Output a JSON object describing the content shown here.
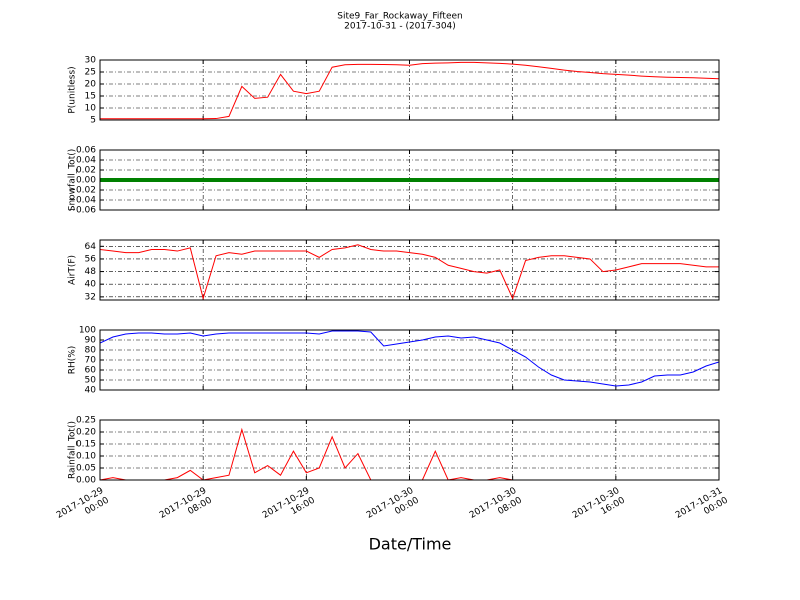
{
  "title": "Site9_Far_Rockaway_Fifteen",
  "subtitle": "2017-10-31 - (2017-304)",
  "xlabel": "Date/Time",
  "chart_data": [
    {
      "type": "line",
      "ylabel": "P(unitless)",
      "ylim": [
        5,
        30
      ],
      "yticks": [
        5,
        10,
        15,
        20,
        25,
        30
      ],
      "grid": true,
      "xlim": [
        "2017-10-29 00:00",
        "2017-10-31 00:00"
      ],
      "x": [
        "2017-10-29 00:00",
        "2017-10-29 01:00",
        "2017-10-29 02:00",
        "2017-10-29 03:00",
        "2017-10-29 04:00",
        "2017-10-29 05:00",
        "2017-10-29 06:00",
        "2017-10-29 07:00",
        "2017-10-29 08:00",
        "2017-10-29 09:00",
        "2017-10-29 10:00",
        "2017-10-29 11:00",
        "2017-10-29 12:00",
        "2017-10-29 13:00",
        "2017-10-29 14:00",
        "2017-10-29 15:00",
        "2017-10-29 16:00",
        "2017-10-29 17:00",
        "2017-10-29 18:00",
        "2017-10-29 19:00",
        "2017-10-29 20:00",
        "2017-10-29 21:00",
        "2017-10-29 22:00",
        "2017-10-29 23:00",
        "2017-10-30 00:00",
        "2017-10-30 01:00",
        "2017-10-30 02:00",
        "2017-10-30 03:00",
        "2017-10-30 04:00",
        "2017-10-30 05:00",
        "2017-10-30 06:00",
        "2017-10-30 07:00",
        "2017-10-30 08:00",
        "2017-10-30 09:00",
        "2017-10-30 10:00",
        "2017-10-30 11:00",
        "2017-10-30 12:00",
        "2017-10-30 13:00",
        "2017-10-30 14:00",
        "2017-10-30 15:00",
        "2017-10-30 16:00",
        "2017-10-30 17:00",
        "2017-10-30 18:00",
        "2017-10-30 19:00",
        "2017-10-30 20:00",
        "2017-10-30 21:00",
        "2017-10-30 22:00",
        "2017-10-30 23:00",
        "2017-10-31 00:00"
      ],
      "series": [
        {
          "color": "#ff0000",
          "values": [
            5.5,
            5.5,
            5.5,
            5.5,
            5.5,
            5.5,
            5.5,
            5.5,
            5.5,
            5.6,
            6.5,
            19,
            14,
            14.5,
            24,
            17,
            16,
            17,
            27,
            28,
            28.2,
            28.2,
            28.1,
            28,
            27.8,
            28.5,
            28.7,
            28.8,
            29,
            29,
            28.8,
            28.6,
            28.3,
            27.8,
            27.2,
            26.5,
            25.8,
            25.2,
            24.8,
            24.3,
            24,
            23.7,
            23.3,
            23,
            22.8,
            22.7,
            22.6,
            22.4,
            22.2
          ]
        }
      ]
    },
    {
      "type": "line",
      "ylabel": "Snowfall_Tot()",
      "ylim": [
        -0.06,
        0.06
      ],
      "yticks": [
        {
          "value": -0.06,
          "label": "−0.06"
        },
        {
          "value": -0.04,
          "label": "−0.04"
        },
        {
          "value": -0.02,
          "label": "−0.02"
        },
        {
          "value": 0,
          "label": "0.00"
        },
        0.02,
        0.04,
        0.06
      ],
      "grid": true,
      "xlim": [
        "2017-10-29 00:00",
        "2017-10-31 00:00"
      ],
      "x": [
        "2017-10-29 00:00",
        "2017-10-29 01:00",
        "2017-10-29 02:00",
        "2017-10-29 03:00",
        "2017-10-29 04:00",
        "2017-10-29 05:00",
        "2017-10-29 06:00",
        "2017-10-29 07:00",
        "2017-10-29 08:00",
        "2017-10-29 09:00",
        "2017-10-29 10:00",
        "2017-10-29 11:00",
        "2017-10-29 12:00",
        "2017-10-29 13:00",
        "2017-10-29 14:00",
        "2017-10-29 15:00",
        "2017-10-29 16:00",
        "2017-10-29 17:00",
        "2017-10-29 18:00",
        "2017-10-29 19:00",
        "2017-10-29 20:00",
        "2017-10-29 21:00",
        "2017-10-29 22:00",
        "2017-10-29 23:00",
        "2017-10-30 00:00",
        "2017-10-30 01:00",
        "2017-10-30 02:00",
        "2017-10-30 03:00",
        "2017-10-30 04:00",
        "2017-10-30 05:00",
        "2017-10-30 06:00",
        "2017-10-30 07:00",
        "2017-10-30 08:00",
        "2017-10-30 09:00",
        "2017-10-30 10:00",
        "2017-10-30 11:00",
        "2017-10-30 12:00",
        "2017-10-30 13:00",
        "2017-10-30 14:00",
        "2017-10-30 15:00",
        "2017-10-30 16:00",
        "2017-10-30 17:00",
        "2017-10-30 18:00",
        "2017-10-30 19:00",
        "2017-10-30 20:00",
        "2017-10-30 21:00",
        "2017-10-30 22:00",
        "2017-10-30 23:00",
        "2017-10-31 00:00"
      ],
      "series": [
        {
          "color": "#008000",
          "values": [
            0,
            0,
            0,
            0,
            0,
            0,
            0,
            0,
            0,
            0,
            0,
            0,
            0,
            0,
            0,
            0,
            0,
            0,
            0,
            0,
            0,
            0,
            0,
            0,
            0,
            0,
            0,
            0,
            0,
            0,
            0,
            0,
            0,
            0,
            0,
            0,
            0,
            0,
            0,
            0,
            0,
            0,
            0,
            0,
            0,
            0,
            0,
            0,
            0
          ]
        }
      ]
    },
    {
      "type": "line",
      "ylabel": "AirT(F)",
      "ylim": [
        30,
        68
      ],
      "yticks": [
        32,
        40,
        48,
        56,
        64
      ],
      "grid": true,
      "xlim": [
        "2017-10-29 00:00",
        "2017-10-31 00:00"
      ],
      "x": [
        "2017-10-29 00:00",
        "2017-10-29 01:00",
        "2017-10-29 02:00",
        "2017-10-29 03:00",
        "2017-10-29 04:00",
        "2017-10-29 05:00",
        "2017-10-29 06:00",
        "2017-10-29 07:00",
        "2017-10-29 08:00",
        "2017-10-29 09:00",
        "2017-10-29 10:00",
        "2017-10-29 11:00",
        "2017-10-29 12:00",
        "2017-10-29 13:00",
        "2017-10-29 14:00",
        "2017-10-29 15:00",
        "2017-10-29 16:00",
        "2017-10-29 17:00",
        "2017-10-29 18:00",
        "2017-10-29 19:00",
        "2017-10-29 20:00",
        "2017-10-29 21:00",
        "2017-10-29 22:00",
        "2017-10-29 23:00",
        "2017-10-30 00:00",
        "2017-10-30 01:00",
        "2017-10-30 02:00",
        "2017-10-30 03:00",
        "2017-10-30 04:00",
        "2017-10-30 05:00",
        "2017-10-30 06:00",
        "2017-10-30 07:00",
        "2017-10-30 08:00",
        "2017-10-30 09:00",
        "2017-10-30 10:00",
        "2017-10-30 11:00",
        "2017-10-30 12:00",
        "2017-10-30 13:00",
        "2017-10-30 14:00",
        "2017-10-30 15:00",
        "2017-10-30 16:00",
        "2017-10-30 17:00",
        "2017-10-30 18:00",
        "2017-10-30 19:00",
        "2017-10-30 20:00",
        "2017-10-30 21:00",
        "2017-10-30 22:00",
        "2017-10-30 23:00",
        "2017-10-31 00:00"
      ],
      "series": [
        {
          "color": "#ff0000",
          "values": [
            62,
            61,
            60,
            60,
            62,
            62,
            61,
            63,
            31,
            58,
            60,
            59,
            61,
            61,
            61,
            61,
            61,
            57,
            62,
            63,
            65,
            62,
            61,
            61,
            60,
            59,
            57,
            52,
            50,
            48,
            47,
            49,
            31,
            55,
            57,
            58,
            58,
            57,
            56,
            48,
            49,
            51,
            53,
            53,
            53,
            53,
            52,
            51,
            51
          ]
        }
      ]
    },
    {
      "type": "line",
      "ylabel": "RH(%)",
      "ylim": [
        40,
        100
      ],
      "yticks": [
        40,
        50,
        60,
        70,
        80,
        90,
        100
      ],
      "grid": true,
      "xlim": [
        "2017-10-29 00:00",
        "2017-10-31 00:00"
      ],
      "x": [
        "2017-10-29 00:00",
        "2017-10-29 01:00",
        "2017-10-29 02:00",
        "2017-10-29 03:00",
        "2017-10-29 04:00",
        "2017-10-29 05:00",
        "2017-10-29 06:00",
        "2017-10-29 07:00",
        "2017-10-29 08:00",
        "2017-10-29 09:00",
        "2017-10-29 10:00",
        "2017-10-29 11:00",
        "2017-10-29 12:00",
        "2017-10-29 13:00",
        "2017-10-29 14:00",
        "2017-10-29 15:00",
        "2017-10-29 16:00",
        "2017-10-29 17:00",
        "2017-10-29 18:00",
        "2017-10-29 19:00",
        "2017-10-29 20:00",
        "2017-10-29 21:00",
        "2017-10-29 22:00",
        "2017-10-29 23:00",
        "2017-10-30 00:00",
        "2017-10-30 01:00",
        "2017-10-30 02:00",
        "2017-10-30 03:00",
        "2017-10-30 04:00",
        "2017-10-30 05:00",
        "2017-10-30 06:00",
        "2017-10-30 07:00",
        "2017-10-30 08:00",
        "2017-10-30 09:00",
        "2017-10-30 10:00",
        "2017-10-30 11:00",
        "2017-10-30 12:00",
        "2017-10-30 13:00",
        "2017-10-30 14:00",
        "2017-10-30 15:00",
        "2017-10-30 16:00",
        "2017-10-30 17:00",
        "2017-10-30 18:00",
        "2017-10-30 19:00",
        "2017-10-30 20:00",
        "2017-10-30 21:00",
        "2017-10-30 22:00",
        "2017-10-30 23:00",
        "2017-10-31 00:00"
      ],
      "series": [
        {
          "color": "#0000ff",
          "values": [
            87,
            93,
            96,
            97,
            97,
            96,
            96,
            97,
            94,
            96,
            97,
            97,
            97,
            97,
            97,
            97,
            97,
            96,
            99,
            99,
            99,
            98,
            84,
            86,
            88,
            90,
            93,
            94,
            92,
            93,
            90,
            87,
            80,
            73,
            63,
            55,
            50,
            49,
            48,
            46,
            44,
            45,
            48,
            54,
            55,
            55,
            58,
            64,
            68
          ]
        }
      ]
    },
    {
      "type": "line",
      "ylabel": "Rainfall_Tot()",
      "ylim": [
        0,
        0.25
      ],
      "yticks": [
        {
          "value": 0,
          "label": "0.00"
        },
        0.05,
        {
          "value": 0.1,
          "label": "0.10"
        },
        0.15,
        {
          "value": 0.2,
          "label": "0.20"
        },
        0.25
      ],
      "grid": true,
      "xlim": [
        "2017-10-29 00:00",
        "2017-10-31 00:00"
      ],
      "xticks": [
        {
          "value": "2017-10-29 00:00",
          "label": "2017-10-29\n00:00"
        },
        {
          "value": "2017-10-29 08:00",
          "label": "2017-10-29\n08:00"
        },
        {
          "value": "2017-10-29 16:00",
          "label": "2017-10-29\n16:00"
        },
        {
          "value": "2017-10-30 00:00",
          "label": "2017-10-30\n00:00"
        },
        {
          "value": "2017-10-30 08:00",
          "label": "2017-10-30\n08:00"
        },
        {
          "value": "2017-10-30 16:00",
          "label": "2017-10-30\n16:00"
        },
        {
          "value": "2017-10-31 00:00",
          "label": "2017-10-31\n00:00"
        }
      ],
      "x": [
        "2017-10-29 00:00",
        "2017-10-29 01:00",
        "2017-10-29 02:00",
        "2017-10-29 03:00",
        "2017-10-29 04:00",
        "2017-10-29 05:00",
        "2017-10-29 06:00",
        "2017-10-29 07:00",
        "2017-10-29 08:00",
        "2017-10-29 09:00",
        "2017-10-29 10:00",
        "2017-10-29 11:00",
        "2017-10-29 12:00",
        "2017-10-29 13:00",
        "2017-10-29 14:00",
        "2017-10-29 15:00",
        "2017-10-29 16:00",
        "2017-10-29 17:00",
        "2017-10-29 18:00",
        "2017-10-29 19:00",
        "2017-10-29 20:00",
        "2017-10-29 21:00",
        "2017-10-29 22:00",
        "2017-10-29 23:00",
        "2017-10-30 00:00",
        "2017-10-30 01:00",
        "2017-10-30 02:00",
        "2017-10-30 03:00",
        "2017-10-30 04:00",
        "2017-10-30 05:00",
        "2017-10-30 06:00",
        "2017-10-30 07:00",
        "2017-10-30 08:00",
        "2017-10-30 09:00",
        "2017-10-30 10:00",
        "2017-10-30 11:00",
        "2017-10-30 12:00",
        "2017-10-30 13:00",
        "2017-10-30 14:00",
        "2017-10-30 15:00",
        "2017-10-30 16:00",
        "2017-10-30 17:00",
        "2017-10-30 18:00",
        "2017-10-30 19:00",
        "2017-10-30 20:00",
        "2017-10-30 21:00",
        "2017-10-30 22:00",
        "2017-10-30 23:00",
        "2017-10-31 00:00"
      ],
      "series": [
        {
          "color": "#ff0000",
          "values": [
            0,
            0.01,
            0,
            0,
            0,
            0,
            0.01,
            0.04,
            0,
            0.01,
            0.02,
            0.21,
            0.03,
            0.06,
            0.02,
            0.12,
            0.03,
            0.05,
            0.18,
            0.05,
            0.11,
            0,
            0,
            0,
            0,
            0,
            0.12,
            0,
            0.01,
            0,
            0,
            0.01,
            0,
            0,
            0,
            0,
            0,
            0,
            0,
            0,
            0,
            0,
            0,
            0,
            0,
            0,
            0,
            0,
            0
          ]
        }
      ]
    }
  ]
}
